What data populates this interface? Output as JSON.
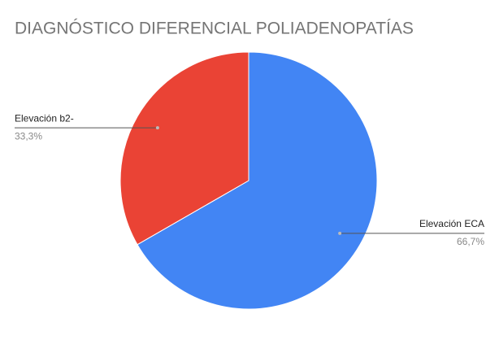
{
  "chart_data": {
    "type": "pie",
    "title": "DIAGNÓSTICO DIFERENCIAL POLIADENOPATÍAS",
    "categories": [
      "Elevación ECA",
      "Elevación b2-"
    ],
    "values": [
      66.7,
      33.3
    ],
    "value_labels": [
      "66,7%",
      "33,3%"
    ],
    "colors": [
      "#4285f4",
      "#ea4335"
    ]
  }
}
